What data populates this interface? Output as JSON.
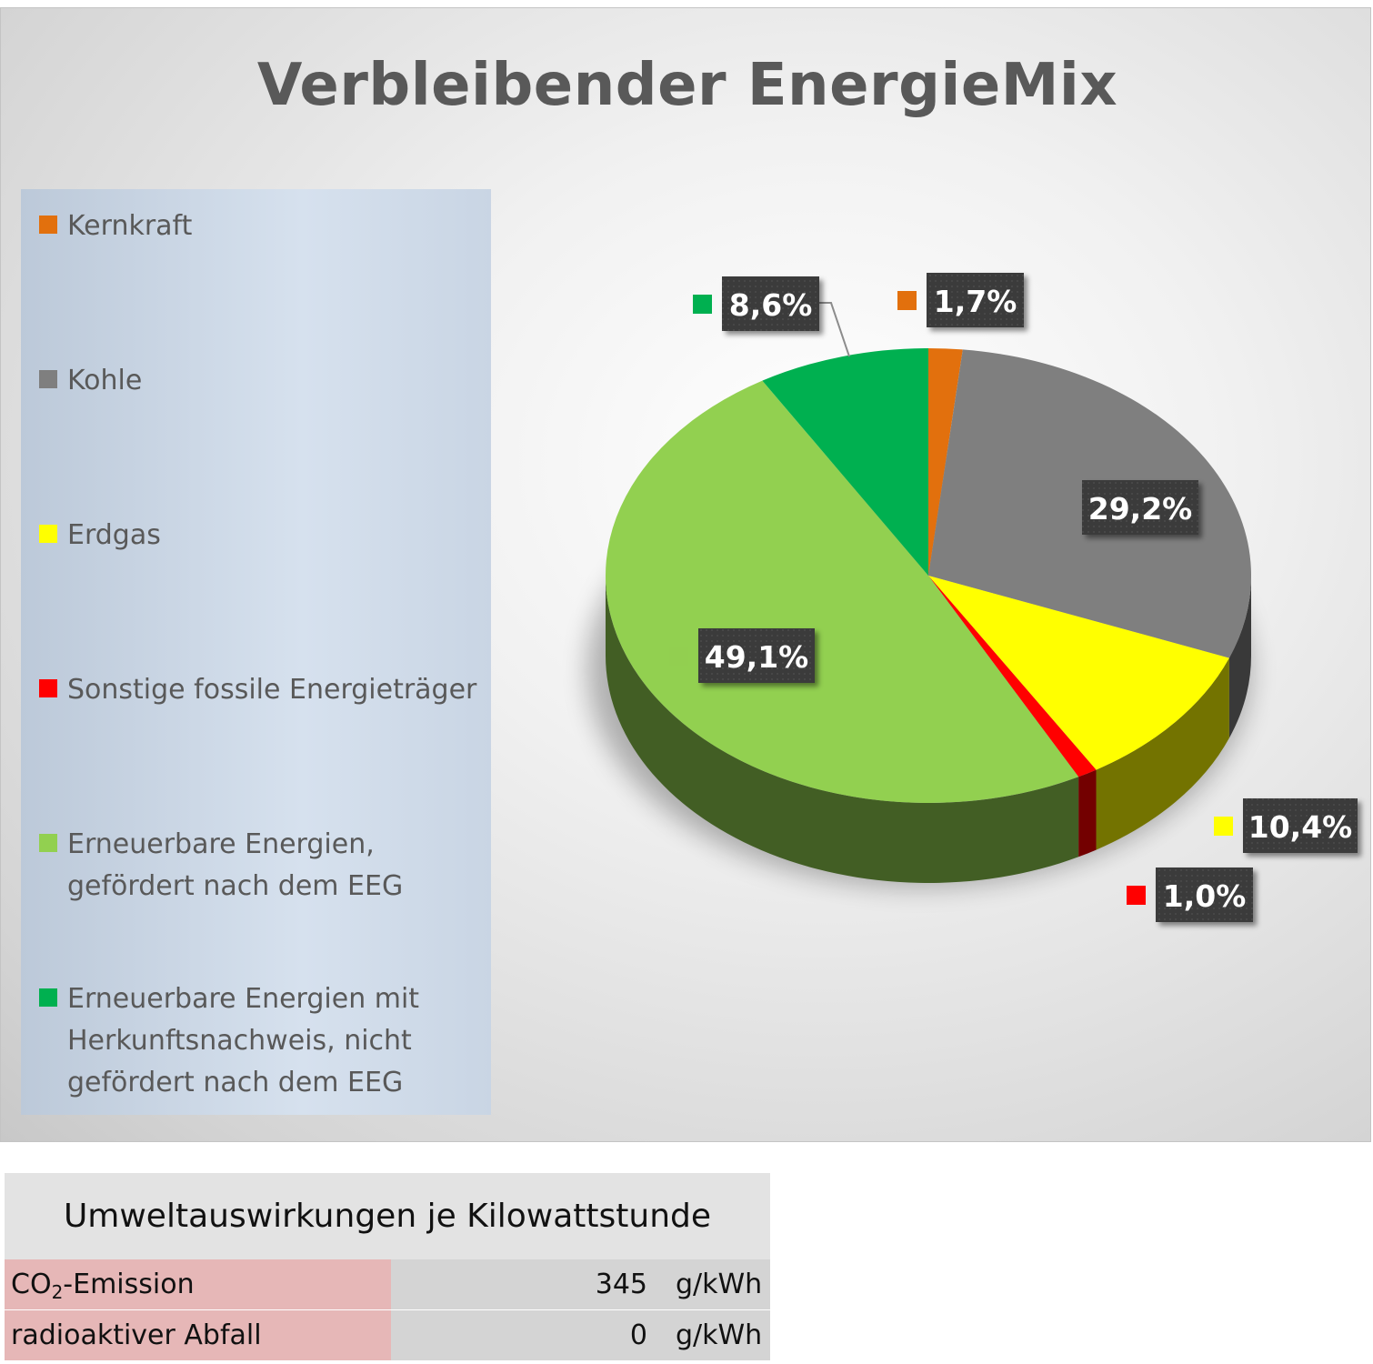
{
  "chart_data": {
    "type": "pie",
    "title": "Verbleibender EnergieMix",
    "slices": [
      {
        "label": "Kernkraft",
        "value": 1.7,
        "display": "1,7%",
        "color": "#e2700d"
      },
      {
        "label": "Kohle",
        "value": 29.2,
        "display": "29,2%",
        "color": "#7f7f7f"
      },
      {
        "label": "Erdgas",
        "value": 10.4,
        "display": "10,4%",
        "color": "#ffff00"
      },
      {
        "label": "Sonstige fossile Energieträger",
        "value": 1.0,
        "display": "1,0%",
        "color": "#ff0000"
      },
      {
        "label": "Erneuerbare Energien, gefördert nach dem EEG",
        "value": 49.1,
        "display": "49,1%",
        "color": "#92d050"
      },
      {
        "label": "Erneuerbare Energien mit Herkunftsnachweis, nicht gefördert nach dem EEG",
        "value": 8.6,
        "display": "8,6%",
        "color": "#00b050"
      }
    ],
    "legend_position": "left",
    "style": "3d"
  },
  "impact": {
    "title": "Umweltauswirkungen je Kilowattstunde",
    "rows": [
      {
        "label_main": "CO",
        "label_sub": "2",
        "label_rest": "-Emission",
        "value": "345",
        "unit": "g/kWh"
      },
      {
        "label_main": "radioaktiver Abfall",
        "label_sub": "",
        "label_rest": "",
        "value": "0",
        "unit": "g/kWh"
      }
    ]
  }
}
